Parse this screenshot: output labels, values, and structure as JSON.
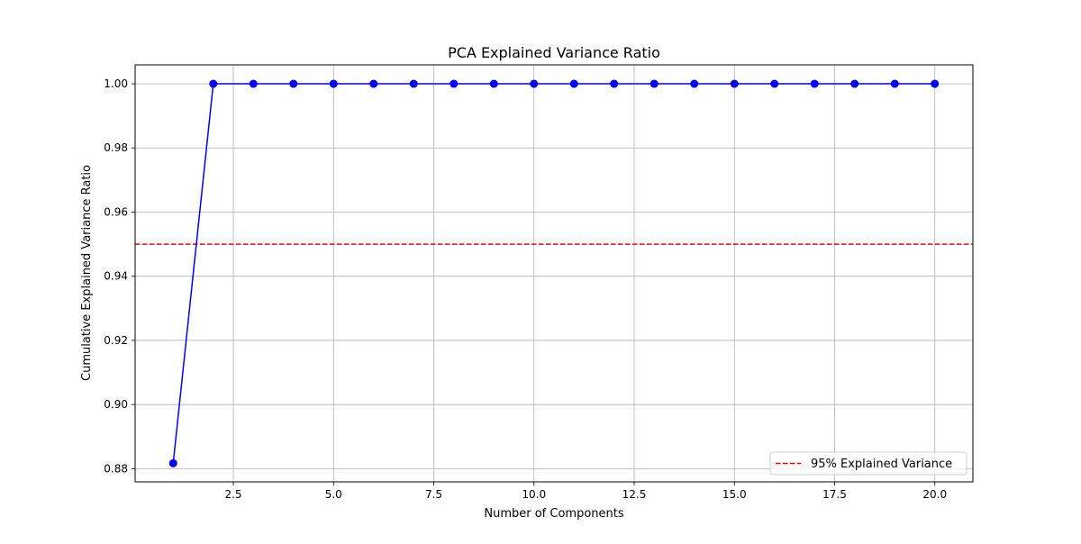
{
  "chart_data": {
    "type": "line",
    "title": "PCA Explained Variance Ratio",
    "xlabel": "Number of Components",
    "ylabel": "Cumulative Explained Variance Ratio",
    "xlim": [
      0.05,
      20.95
    ],
    "ylim": [
      0.8759,
      1.0059
    ],
    "x_ticks": [
      2.5,
      5.0,
      7.5,
      10.0,
      12.5,
      15.0,
      17.5,
      20.0
    ],
    "x_tick_labels": [
      "2.5",
      "5.0",
      "7.5",
      "10.0",
      "12.5",
      "15.0",
      "17.5",
      "20.0"
    ],
    "y_ticks": [
      0.88,
      0.9,
      0.92,
      0.94,
      0.96,
      0.98,
      1.0
    ],
    "y_tick_labels": [
      "0.88",
      "0.90",
      "0.92",
      "0.94",
      "0.96",
      "0.98",
      "1.00"
    ],
    "grid": true,
    "legend_position": "lower-right",
    "series": [
      {
        "style": "solid line with circle markers",
        "color": "#0000ff",
        "x": [
          1,
          2,
          3,
          4,
          5,
          6,
          7,
          8,
          9,
          10,
          11,
          12,
          13,
          14,
          15,
          16,
          17,
          18,
          19,
          20
        ],
        "y": [
          0.8817,
          1.0,
          1.0,
          1.0,
          1.0,
          1.0,
          1.0,
          1.0,
          1.0,
          1.0,
          1.0,
          1.0,
          1.0,
          1.0,
          1.0,
          1.0,
          1.0,
          1.0,
          1.0,
          1.0
        ]
      }
    ],
    "reference_lines": [
      {
        "name": "95% Explained Variance",
        "orientation": "horizontal",
        "y": 0.95,
        "style": "dashed",
        "color": "#ff0000"
      }
    ]
  }
}
